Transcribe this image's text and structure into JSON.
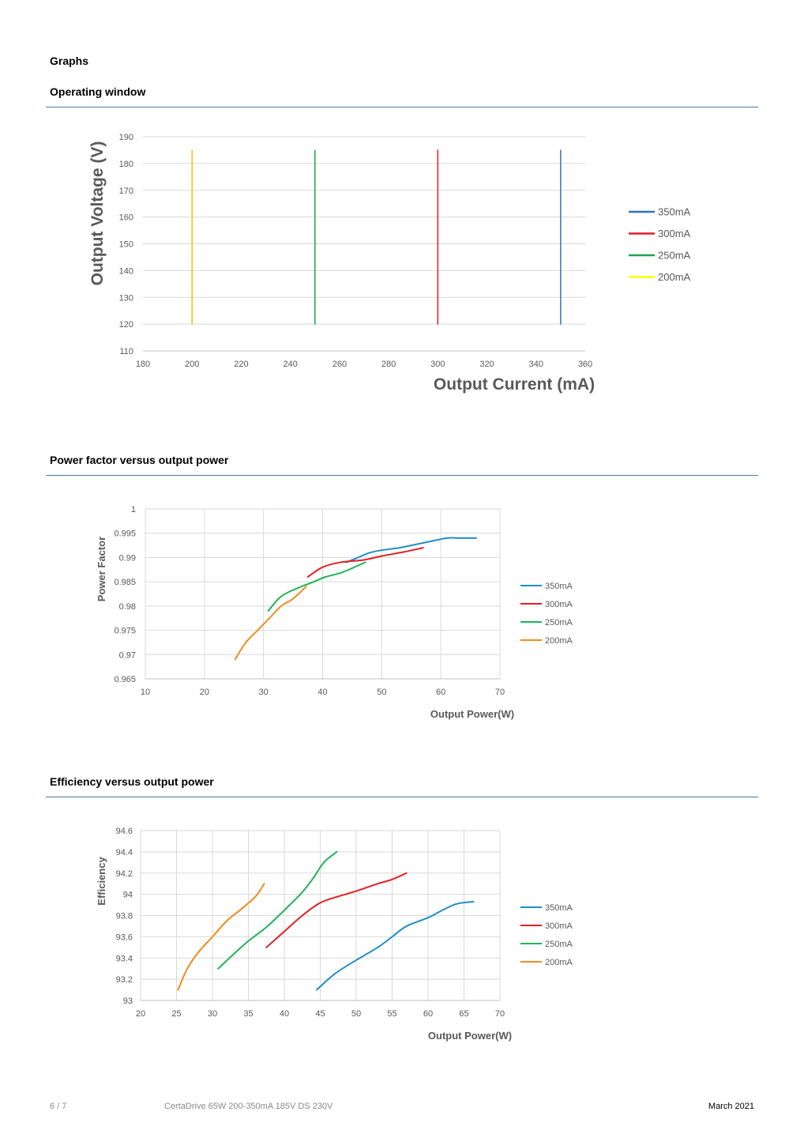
{
  "headings": {
    "graphs": "Graphs",
    "operating_window": "Operating window",
    "power_factor": "Power factor versus output power",
    "efficiency": "Efficiency versus output power"
  },
  "footer": {
    "page": "6 / 7",
    "doc": "CertaDrive 65W 200-350mA 185V DS 230V",
    "date": "March 2021"
  },
  "chart_data": [
    {
      "type": "line",
      "xlabel": "Output Current (mA)",
      "ylabel": "Output Voltage (V)",
      "xlim": [
        180,
        360
      ],
      "ylim": [
        110,
        190
      ],
      "xticks": [
        180,
        200,
        220,
        240,
        260,
        280,
        300,
        320,
        340,
        360
      ],
      "yticks": [
        110,
        120,
        130,
        140,
        150,
        160,
        170,
        180,
        190
      ],
      "legend_position": "right",
      "series": [
        {
          "name": "350mA",
          "color": "#2e75b6",
          "points": [
            [
              350,
              120
            ],
            [
              350,
              185
            ]
          ]
        },
        {
          "name": "300mA",
          "color": "#e31e24",
          "points": [
            [
              300,
              120
            ],
            [
              300,
              185
            ]
          ]
        },
        {
          "name": "250mA",
          "color": "#1fa64a",
          "points": [
            [
              250,
              120
            ],
            [
              250,
              185
            ]
          ]
        },
        {
          "name": "200mA",
          "color": "#ffc000",
          "legend_color": "#ffff00",
          "points": [
            [
              200,
              120
            ],
            [
              200,
              185
            ]
          ]
        }
      ]
    },
    {
      "type": "line",
      "xlabel": "Output Power(W)",
      "ylabel": "Power Factor",
      "xlim": [
        10,
        70
      ],
      "ylim": [
        0.965,
        1
      ],
      "xticks": [
        10,
        20,
        30,
        40,
        50,
        60,
        70
      ],
      "yticks": [
        0.965,
        0.97,
        0.975,
        0.98,
        0.985,
        0.99,
        0.995,
        1
      ],
      "ytick_labels": [
        "0.965",
        "0.97",
        "0.975",
        "0.98",
        "0.985",
        "0.99",
        "0.995",
        "1"
      ],
      "legend_position": "right",
      "series": [
        {
          "name": "350mA",
          "color": "#1f8ec9",
          "points": [
            [
              44,
              0.989
            ],
            [
              46,
              0.99
            ],
            [
              48,
              0.991
            ],
            [
              50,
              0.9915
            ],
            [
              53,
              0.992
            ],
            [
              57,
              0.993
            ],
            [
              61,
              0.994
            ],
            [
              63,
              0.994
            ],
            [
              66,
              0.994
            ]
          ]
        },
        {
          "name": "300mA",
          "color": "#e31e24",
          "points": [
            [
              37.5,
              0.986
            ],
            [
              40,
              0.988
            ],
            [
              43,
              0.989
            ],
            [
              47,
              0.9895
            ],
            [
              50,
              0.9903
            ],
            [
              54,
              0.9912
            ],
            [
              57,
              0.992
            ]
          ]
        },
        {
          "name": "250mA",
          "color": "#1fb457",
          "points": [
            [
              30.8,
              0.979
            ],
            [
              33,
              0.982
            ],
            [
              36,
              0.9838
            ],
            [
              38.5,
              0.985
            ],
            [
              40.5,
              0.986
            ],
            [
              43,
              0.9868
            ],
            [
              45,
              0.9878
            ],
            [
              47.2,
              0.989
            ]
          ]
        },
        {
          "name": "200mA",
          "color": "#f08c1e",
          "points": [
            [
              25.2,
              0.969
            ],
            [
              27,
              0.9725
            ],
            [
              29,
              0.975
            ],
            [
              31,
              0.9775
            ],
            [
              33,
              0.98
            ],
            [
              35,
              0.9815
            ],
            [
              37.2,
              0.984
            ]
          ]
        }
      ]
    },
    {
      "type": "line",
      "xlabel": "Output Power(W)",
      "ylabel": "Efficiency",
      "xlim": [
        20,
        70
      ],
      "ylim": [
        93,
        94.6
      ],
      "xticks": [
        20,
        25,
        30,
        35,
        40,
        45,
        50,
        55,
        60,
        65,
        70
      ],
      "yticks": [
        93,
        93.2,
        93.4,
        93.6,
        93.8,
        94,
        94.2,
        94.4,
        94.6
      ],
      "ytick_labels": [
        "93",
        "93.2",
        "93.4",
        "93.6",
        "93.8",
        "94",
        "94.2",
        "94.4",
        "94.6"
      ],
      "legend_position": "right",
      "series": [
        {
          "name": "350mA",
          "color": "#1f8ec9",
          "points": [
            [
              44.5,
              93.1
            ],
            [
              47,
              93.25
            ],
            [
              50,
              93.38
            ],
            [
              53,
              93.5
            ],
            [
              55,
              93.6
            ],
            [
              57,
              93.7
            ],
            [
              60,
              93.78
            ],
            [
              62,
              93.85
            ],
            [
              64,
              93.91
            ],
            [
              66.3,
              93.93
            ]
          ]
        },
        {
          "name": "300mA",
          "color": "#e31e24",
          "points": [
            [
              37.5,
              93.5
            ],
            [
              40,
              93.65
            ],
            [
              42.5,
              93.8
            ],
            [
              45,
              93.92
            ],
            [
              47.5,
              93.98
            ],
            [
              50,
              94.03
            ],
            [
              53,
              94.1
            ],
            [
              55,
              94.14
            ],
            [
              57,
              94.2
            ]
          ]
        },
        {
          "name": "250mA",
          "color": "#1fb457",
          "points": [
            [
              30.8,
              93.3
            ],
            [
              33,
              93.44
            ],
            [
              35,
              93.56
            ],
            [
              37.5,
              93.69
            ],
            [
              40,
              93.85
            ],
            [
              42.5,
              94.02
            ],
            [
              44,
              94.15
            ],
            [
              45.5,
              94.3
            ],
            [
              47.3,
              94.4
            ]
          ]
        },
        {
          "name": "200mA",
          "color": "#f08c1e",
          "points": [
            [
              25.2,
              93.1
            ],
            [
              26.5,
              93.3
            ],
            [
              28,
              93.45
            ],
            [
              30,
              93.6
            ],
            [
              32,
              93.75
            ],
            [
              34,
              93.86
            ],
            [
              36,
              93.98
            ],
            [
              37.2,
              94.1
            ]
          ]
        }
      ]
    }
  ]
}
